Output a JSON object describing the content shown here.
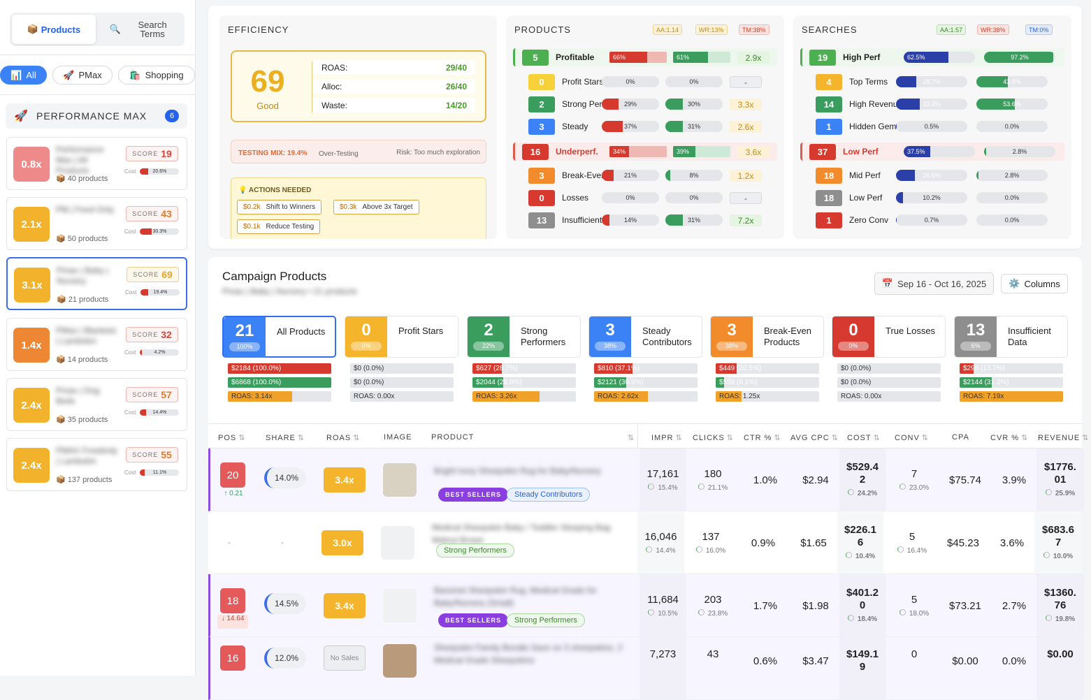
{
  "sidebar": {
    "tabs": [
      {
        "label": "Products",
        "icon": "📦"
      },
      {
        "label": "Search Terms",
        "icon": "🔍"
      }
    ],
    "filters": [
      {
        "label": "All",
        "icon": "📊"
      },
      {
        "label": "PMax",
        "icon": "🚀"
      },
      {
        "label": "Shopping",
        "icon": "🛍️"
      }
    ],
    "group": {
      "title": "PERFORMANCE MAX",
      "count": "6",
      "icon": "🚀"
    },
    "campaigns": [
      {
        "roas": "0.8x",
        "color": "#ef8a8a",
        "name": "Performance Max | All Products",
        "products": "40 products",
        "score": "19",
        "score_color": "#d8453a",
        "cost": "20.6%",
        "cost_frac": 0.206
      },
      {
        "roas": "2.1x",
        "color": "#f2b22c",
        "name": "PM | Feed Only",
        "products": "50 products",
        "score": "43",
        "score_color": "#e07a2a",
        "cost": "30.3%",
        "cost_frac": 0.303
      },
      {
        "roas": "3.1x",
        "color": "#f2b22c",
        "name": "Pmax | Baby | Nursery",
        "products": "21 products",
        "score": "69",
        "score_color": "#e6a62a",
        "cost": "19.4%",
        "cost_frac": 0.194
      },
      {
        "roas": "1.4x",
        "color": "#ee8733",
        "name": "PMax | Blankets | Lambskin",
        "products": "14 products",
        "score": "32",
        "score_color": "#d8453a",
        "cost": "4.2%",
        "cost_frac": 0.042
      },
      {
        "roas": "2.4x",
        "color": "#f2b22c",
        "name": "Pmax | Dog Beds",
        "products": "35 products",
        "score": "57",
        "score_color": "#e07a2a",
        "cost": "14.4%",
        "cost_frac": 0.144
      },
      {
        "roas": "2.4x",
        "color": "#f2b22c",
        "name": "PMAX Freebirdy | Lambskin",
        "products": "137 products",
        "score": "55",
        "score_color": "#e07a2a",
        "cost": "11.1%",
        "cost_frac": 0.111
      }
    ],
    "score_label": "SCORE",
    "cost_label": "Cost",
    "box_icon": "📦"
  },
  "efficiency": {
    "title": "EFFICIENCY",
    "score": "69",
    "grade": "Good",
    "rows": [
      {
        "label": "ROAS:",
        "value": "29/40"
      },
      {
        "label": "Alloc:",
        "value": "26/40"
      },
      {
        "label": "Waste:",
        "value": "14/20"
      }
    ],
    "testing": {
      "label": "TESTING MIX: 19.4%",
      "status": "Over-Testing",
      "risk": "Risk: Too much exploration"
    },
    "actions_title": "ACTIONS NEEDED",
    "actions_icon": "💡",
    "actions": [
      {
        "amount": "$0.2k",
        "label": "Shift to Winners"
      },
      {
        "amount": "$0.3k",
        "label": "Above 3x Target"
      },
      {
        "amount": "$0.1k",
        "label": "Reduce Testing"
      }
    ]
  },
  "products_panel": {
    "title": "PRODUCTS",
    "pills": [
      {
        "label": "AA:1.14",
        "bg": "#fdf1d6",
        "fg": "#c48a1a",
        "bd": "#f0d391"
      },
      {
        "label": "WR:13%",
        "bg": "#fdf1d6",
        "fg": "#c48a1a",
        "bd": "#f0d391"
      },
      {
        "label": "TM:38%",
        "bg": "#fde3df",
        "fg": "#c9432f",
        "bd": "#f2b6ac"
      }
    ],
    "rows": [
      {
        "count": "5",
        "label": "Profitable",
        "badge": "#4caf50",
        "bar1": "66%",
        "f1": 0.66,
        "c1": "#d63a2f",
        "bg1": "#f0b8b2",
        "bar2": "61%",
        "f2": 0.61,
        "c2": "#3a9d5d",
        "bg2": "#cfe9d7",
        "mult": "2.9x",
        "mult_bg": "#e6f5e2",
        "mult_fg": "#3a8a2a",
        "main": true,
        "row_bg": "#eef7ee",
        "accent": "#4caf50"
      },
      {
        "count": "0",
        "label": "Profit Stars",
        "badge": "#f7d13a",
        "bar1": "0%",
        "f1": 0,
        "c1": "#d63a2f",
        "bar2": "0%",
        "f2": 0,
        "c2": "#3a9d5d",
        "mult": "-",
        "mult_bg": "#eceef1",
        "mult_fg": "#555"
      },
      {
        "count": "2",
        "label": "Strong Perf",
        "badge": "#3a9d5d",
        "bar1": "29%",
        "f1": 0.29,
        "c1": "#d63a2f",
        "bar2": "30%",
        "f2": 0.3,
        "c2": "#3a9d5d",
        "mult": "3.3x",
        "mult_bg": "#fdf1d6",
        "mult_fg": "#c48a1a"
      },
      {
        "count": "3",
        "label": "Steady",
        "badge": "#3b82f6",
        "bar1": "37%",
        "f1": 0.37,
        "c1": "#d63a2f",
        "bar2": "31%",
        "f2": 0.31,
        "c2": "#3a9d5d",
        "mult": "2.6x",
        "mult_bg": "#fdf1d6",
        "mult_fg": "#c48a1a"
      },
      {
        "count": "16",
        "label": "Underperf.",
        "badge": "#d63a2f",
        "bar1": "34%",
        "f1": 0.34,
        "c1": "#d63a2f",
        "bg1": "#f0b8b2",
        "bar2": "39%",
        "f2": 0.39,
        "c2": "#3a9d5d",
        "bg2": "#cfe9d7",
        "mult": "3.6x",
        "mult_bg": "#fdf1d6",
        "mult_fg": "#c48a1a",
        "main": true,
        "row_bg": "#fbeceb",
        "accent": "#e05a4f",
        "lab_fg": "#d63a2f"
      },
      {
        "count": "3",
        "label": "Break-Even",
        "badge": "#f28b2c",
        "bar1": "21%",
        "f1": 0.21,
        "c1": "#d63a2f",
        "bar2": "8%",
        "f2": 0.08,
        "c2": "#3a9d5d",
        "mult": "1.2x",
        "mult_bg": "#fdf1d6",
        "mult_fg": "#c48a1a"
      },
      {
        "count": "0",
        "label": "Losses",
        "badge": "#d63a2f",
        "bar1": "0%",
        "f1": 0,
        "c1": "#d63a2f",
        "bar2": "0%",
        "f2": 0,
        "c2": "#3a9d5d",
        "mult": "-",
        "mult_bg": "#eceef1",
        "mult_fg": "#555"
      },
      {
        "count": "13",
        "label": "Insufficient",
        "badge": "#8e8e8e",
        "bar1": "14%",
        "f1": 0.14,
        "c1": "#d63a2f",
        "bar2": "31%",
        "f2": 0.31,
        "c2": "#3a9d5d",
        "mult": "7.2x",
        "mult_bg": "#e6f5e2",
        "mult_fg": "#3a8a2a"
      }
    ]
  },
  "searches_panel": {
    "title": "SEARCHES",
    "pills": [
      {
        "label": "AA:1.57",
        "bg": "#e6f5e2",
        "fg": "#3a8a2a",
        "bd": "#b7dfb0"
      },
      {
        "label": "WR:38%",
        "bg": "#fde3df",
        "fg": "#c9432f",
        "bd": "#f2b6ac"
      },
      {
        "label": "TM:0%",
        "bg": "#e2ecfd",
        "fg": "#2f63d6",
        "bd": "#b1c8f5"
      }
    ],
    "rows": [
      {
        "count": "19",
        "label": "High Perf",
        "badge": "#4caf50",
        "bar1": "62.5%",
        "f1": 0.625,
        "c1": "#2a3fa8",
        "bar2": "97.2%",
        "f2": 0.972,
        "c2": "#3a9d5d",
        "main": true,
        "row_bg": "#eef7ee",
        "accent": "#4caf50",
        "w": true
      },
      {
        "count": "4",
        "label": "Top Terms",
        "badge": "#f4b52d",
        "bar1": "28.7%",
        "f1": 0.287,
        "c1": "#2a3fa8",
        "bar2": "43.8%",
        "f2": 0.438,
        "c2": "#3a9d5d"
      },
      {
        "count": "14",
        "label": "High Revenue",
        "badge": "#3a9d5d",
        "bar1": "33.3%",
        "f1": 0.333,
        "c1": "#2a3fa8",
        "bar2": "53.6%",
        "f2": 0.536,
        "c2": "#3a9d5d"
      },
      {
        "count": "1",
        "label": "Hidden Gems",
        "badge": "#3b82f6",
        "bar1": "0.5%",
        "f1": 0.005,
        "c1": "#2a3fa8",
        "bar2": "0.0%",
        "f2": 0,
        "c2": "#3a9d5d"
      },
      {
        "count": "37",
        "label": "Low Perf",
        "badge": "#d63a2f",
        "bar1": "37.5%",
        "f1": 0.375,
        "c1": "#2a3fa8",
        "bar2": "2.8%",
        "f2": 0.028,
        "c2": "#3a9d5d",
        "main": true,
        "row_bg": "#fbeceb",
        "accent": "#e05a4f",
        "lab_fg": "#d63a2f"
      },
      {
        "count": "18",
        "label": "Mid Perf",
        "badge": "#f28b2c",
        "bar1": "26.6%",
        "f1": 0.266,
        "c1": "#2a3fa8",
        "bar2": "2.8%",
        "f2": 0.028,
        "c2": "#3a9d5d"
      },
      {
        "count": "18",
        "label": "Low Perf",
        "badge": "#8e8e8e",
        "bar1": "10.2%",
        "f1": 0.102,
        "c1": "#2a3fa8",
        "bar2": "0.0%",
        "f2": 0,
        "c2": "#3a9d5d"
      },
      {
        "count": "1",
        "label": "Zero Conv",
        "badge": "#d63a2f",
        "bar1": "0.7%",
        "f1": 0.007,
        "c1": "#2a3fa8",
        "bar2": "0.0%",
        "f2": 0,
        "c2": "#3a9d5d"
      }
    ]
  },
  "campaign_products": {
    "title": "Campaign Products",
    "subtitle": "Pmax | Baby | Nursery • 21 products",
    "date_range": "Sep 16 - Oct 16, 2025",
    "date_icon": "📅",
    "columns_label": "Columns",
    "columns_icon": "⚙️",
    "segments": [
      {
        "count": "21",
        "pct": "100%",
        "label": "All Products",
        "color": "#3b82f6",
        "cost": "$2184 (100.0%)",
        "cf": 1.0,
        "rev": "$6868 (100.0%)",
        "rf": 1.0,
        "roas": "ROAS: 3.14x",
        "qf": 0.62,
        "active": true
      },
      {
        "count": "0",
        "pct": "0%",
        "label": "Profit Stars",
        "color": "#f4b52d",
        "cost": "$0 (0.0%)",
        "cf": 0,
        "rev": "$0 (0.0%)",
        "rf": 0,
        "roas": "ROAS: 0.00x",
        "qf": 0
      },
      {
        "count": "2",
        "pct": "22%",
        "label": "Strong Performers",
        "color": "#3a9d5d",
        "cost": "$627 (28.7%)",
        "cf": 0.287,
        "rev": "$2044 (29.8%)",
        "rf": 0.298,
        "roas": "ROAS: 3.26x",
        "qf": 0.65
      },
      {
        "count": "3",
        "pct": "38%",
        "label": "Steady Contributors",
        "color": "#3b82f6",
        "cost": "$810 (37.1%)",
        "cf": 0.371,
        "rev": "$2121 (30.9%)",
        "rf": 0.309,
        "roas": "ROAS: 2.62x",
        "qf": 0.52
      },
      {
        "count": "3",
        "pct": "38%",
        "label": "Break-Even Products",
        "color": "#f28b2c",
        "cost": "$449 (20.5%)",
        "cf": 0.205,
        "rev": "$559 (8.1%)",
        "rf": 0.081,
        "roas": "ROAS: 1.25x",
        "qf": 0.25
      },
      {
        "count": "0",
        "pct": "0%",
        "label": "True Losses",
        "color": "#d63a2f",
        "cost": "$0 (0.0%)",
        "cf": 0,
        "rev": "$0 (0.0%)",
        "rf": 0,
        "roas": "ROAS: 0.00x",
        "qf": 0
      },
      {
        "count": "13",
        "pct": "6%",
        "label": "Insufficient Data",
        "color": "#8e8e8e",
        "cost": "$298 (13.7%)",
        "cf": 0.137,
        "rev": "$2144 (31.2%)",
        "rf": 0.312,
        "roas": "ROAS: 7.19x",
        "qf": 1.0
      }
    ],
    "headers": [
      "POS",
      "SHARE",
      "ROAS",
      "IMAGE",
      "PRODUCT",
      "IMPR",
      "CLICKS",
      "CTR %",
      "AVG CPC",
      "COST",
      "CONV",
      "CPA",
      "CVR %",
      "REVENUE"
    ],
    "rows": [
      {
        "pos": "20",
        "delta": "↑ 0.21",
        "delta_up": true,
        "share": "14.0%",
        "roas": "3.4x",
        "name": "Bright Ivory Sheepskin Rug for Baby/Nursery",
        "tags": [
          {
            "label": "BEST SELLERS",
            "type": "best"
          },
          {
            "label": "Steady Contributors",
            "type": "blue"
          }
        ],
        "impr": "17,161",
        "impr_s": "15.4%",
        "clicks": "180",
        "clicks_s": "21.1%",
        "ctr": "1.0%",
        "cpc": "$2.94",
        "cost": "$529.42",
        "cost_s": "24.2%",
        "conv": "7",
        "conv_s": "23.0%",
        "cpa": "$75.74",
        "cvr": "3.9%",
        "rev": "$1776.01",
        "rev_s": "25.9%",
        "hl": true
      },
      {
        "pos": "-",
        "share": "-",
        "roas": "3.0x",
        "name": "Medical Sheepskin Baby / Toddler Sleeping Bag Walnut Brown",
        "tags": [
          {
            "label": "Strong Performers",
            "type": "green"
          }
        ],
        "impr": "16,046",
        "impr_s": "14.4%",
        "clicks": "137",
        "clicks_s": "16.0%",
        "ctr": "0.9%",
        "cpc": "$1.65",
        "cost": "$226.16",
        "cost_s": "10.4%",
        "conv": "5",
        "conv_s": "16.4%",
        "cpa": "$45.23",
        "cvr": "3.6%",
        "rev": "$683.67",
        "rev_s": "10.0%"
      },
      {
        "pos": "18",
        "delta": "↓ 14.64",
        "delta_up": false,
        "share": "14.5%",
        "roas": "3.4x",
        "name": "Bassinet Sheepskin Rug, Medical Grade for Baby/Nursery (Small)",
        "tags": [
          {
            "label": "BEST SELLERS",
            "type": "best"
          },
          {
            "label": "Strong Performers",
            "type": "green"
          }
        ],
        "impr": "11,684",
        "impr_s": "10.5%",
        "clicks": "203",
        "clicks_s": "23.8%",
        "ctr": "1.7%",
        "cpc": "$1.98",
        "cost": "$401.20",
        "cost_s": "18.4%",
        "conv": "5",
        "conv_s": "18.0%",
        "cpa": "$73.21",
        "cvr": "2.7%",
        "rev": "$1360.76",
        "rev_s": "19.8%",
        "hl": true
      },
      {
        "pos": "16",
        "share": "12.0%",
        "roas": "No Sales",
        "name": "Sheepskin Family Bundle Save on 3 sheepskins, 2 Medical Grade Sheepskins",
        "tags": [],
        "impr": "7,273",
        "impr_s": "",
        "clicks": "43",
        "clicks_s": "",
        "ctr": "0.6%",
        "cpc": "$3.47",
        "cost": "$149.19",
        "cost_s": "",
        "conv": "0",
        "conv_s": "",
        "cpa": "$0.00",
        "cvr": "0.0%",
        "rev": "$0.00",
        "rev_s": "",
        "hl": true,
        "nosales": true
      }
    ]
  }
}
